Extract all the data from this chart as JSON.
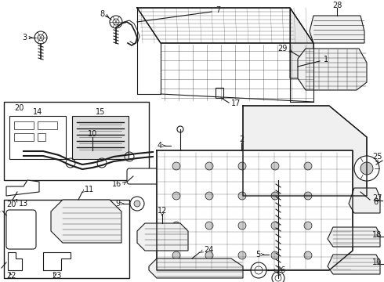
{
  "bg_color": "#ffffff",
  "line_color": "#1a1a1a",
  "fig_w": 4.9,
  "fig_h": 3.6,
  "dpi": 100
}
